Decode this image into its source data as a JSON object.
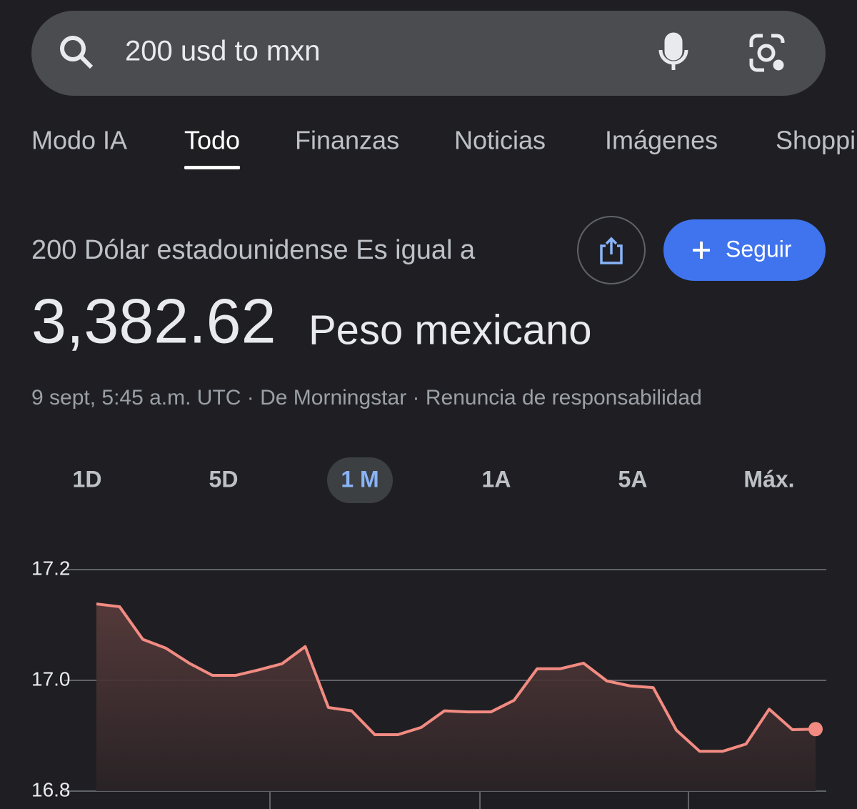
{
  "search": {
    "query": "200 usd to mxn"
  },
  "tabs": {
    "items": [
      "Modo IA",
      "Todo",
      "Finanzas",
      "Noticias",
      "Imágenes",
      "Shopping"
    ],
    "selected": 1
  },
  "result": {
    "label": "200 Dólar estadounidense Es igual a",
    "amount": "3,382.62",
    "unit": "Peso mexicano",
    "source": "9 sept, 5:45 a.m. UTC · De Morningstar · Renuncia de responsabilidad",
    "follow_button": "Seguir"
  },
  "ranges": {
    "items": [
      "1D",
      "5D",
      "1 M",
      "1A",
      "5A",
      "Máx."
    ],
    "selected": 2
  },
  "chart_data": {
    "type": "line",
    "color": "#f28b82",
    "values": [
      17.138,
      17.133,
      17.074,
      17.058,
      17.031,
      17.009,
      17.009,
      17.019,
      17.03,
      17.061,
      16.951,
      16.945,
      16.902,
      16.902,
      16.915,
      16.945,
      16.943,
      16.943,
      16.964,
      17.021,
      17.021,
      17.031,
      16.999,
      16.99,
      16.987,
      16.91,
      16.872,
      16.872,
      16.885,
      16.948,
      16.911,
      16.912
    ],
    "ylim": [
      16.8,
      17.2
    ],
    "yticks": [
      17.2,
      {
        "value": 17,
        "label": "17.0"
      },
      16.8
    ],
    "grid": true
  }
}
